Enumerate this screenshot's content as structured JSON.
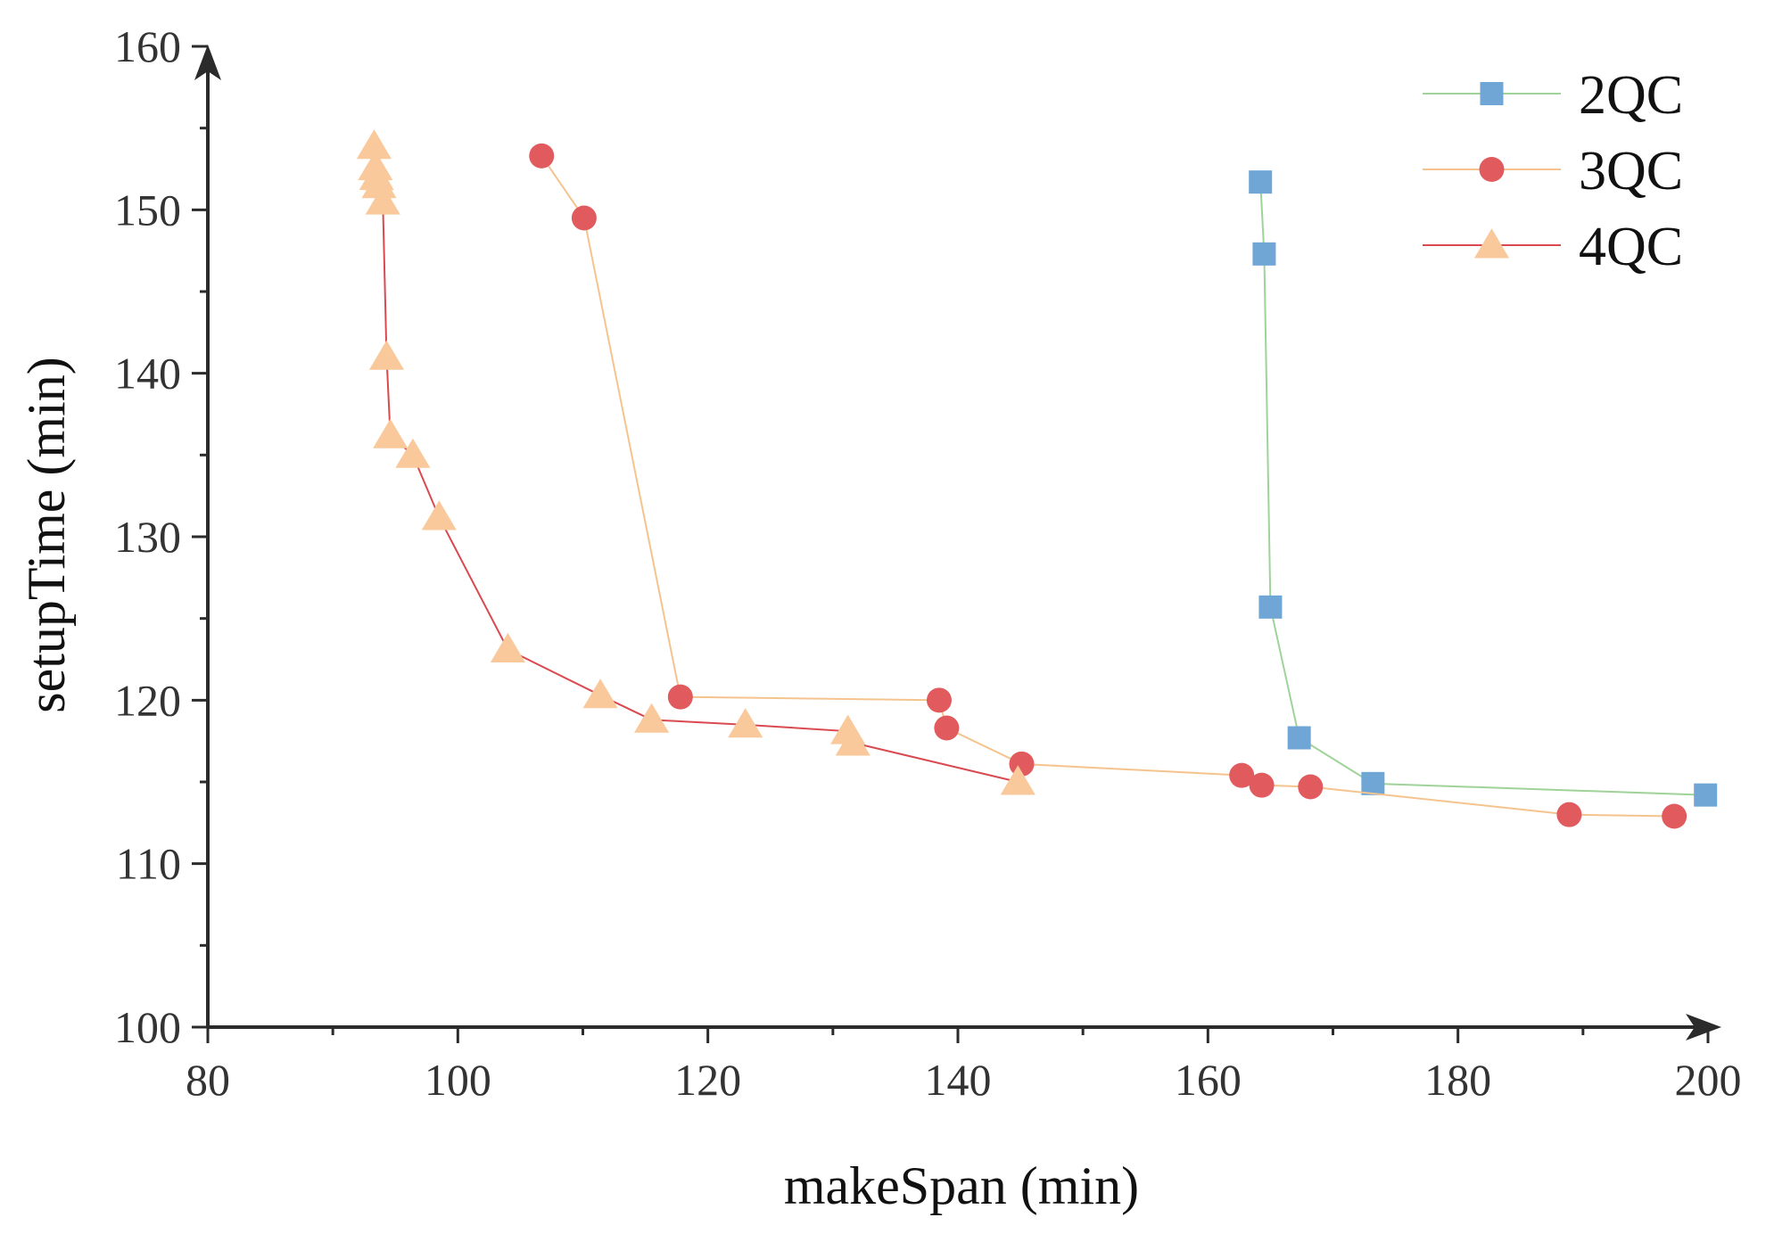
{
  "chart_data": {
    "type": "line",
    "title": "",
    "xlabel": "makeSpan (min)",
    "ylabel": "setupTime (min)",
    "xlim": [
      80,
      200
    ],
    "ylim": [
      100,
      160
    ],
    "xticks": [
      "80",
      "100",
      "120",
      "140",
      "160",
      "180",
      "200"
    ],
    "yticks": [
      "100",
      "110",
      "120",
      "130",
      "140",
      "150",
      "160"
    ],
    "legend_position": "top-right",
    "series": [
      {
        "name": "2QC",
        "marker": "square",
        "line_color": "#9fd39a",
        "marker_color": "#6fa6d6",
        "x": [
          164.2,
          164.5,
          165.0,
          167.3,
          173.2,
          199.8
        ],
        "y": [
          151.7,
          147.3,
          125.7,
          117.7,
          114.9,
          114.2
        ]
      },
      {
        "name": "3QC",
        "marker": "circle",
        "line_color": "#f5c48e",
        "marker_color": "#e05a5e",
        "x": [
          106.7,
          110.1,
          117.8,
          138.5,
          139.1,
          145.1,
          162.7,
          164.3,
          168.2,
          188.9,
          197.3
        ],
        "y": [
          153.3,
          149.5,
          120.2,
          120.0,
          118.3,
          116.1,
          115.4,
          114.8,
          114.7,
          113.0,
          112.9
        ]
      },
      {
        "name": "4QC",
        "marker": "triangle",
        "line_color": "#d94a50",
        "marker_color": "#f9c99c",
        "x": [
          93.3,
          93.4,
          93.5,
          93.7,
          94.0,
          94.3,
          94.6,
          96.4,
          98.5,
          104.0,
          111.4,
          115.5,
          123.0,
          131.2,
          131.6,
          144.8
        ],
        "y": [
          153.9,
          152.6,
          152.0,
          151.5,
          150.5,
          141.0,
          136.2,
          135.0,
          131.2,
          123.1,
          120.3,
          118.8,
          118.5,
          118.1,
          117.4,
          115.0
        ]
      }
    ]
  }
}
